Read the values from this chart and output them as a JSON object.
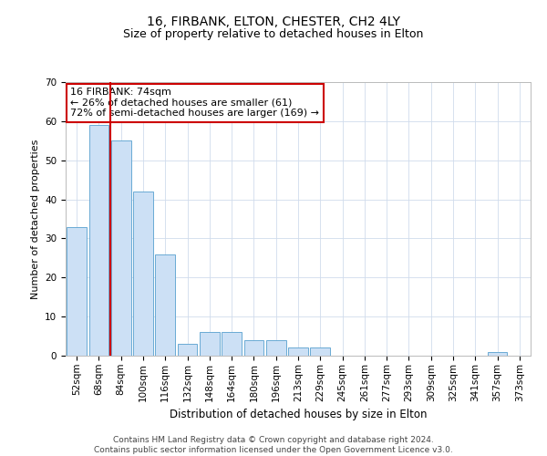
{
  "title": "16, FIRBANK, ELTON, CHESTER, CH2 4LY",
  "subtitle": "Size of property relative to detached houses in Elton",
  "xlabel": "Distribution of detached houses by size in Elton",
  "ylabel": "Number of detached properties",
  "categories": [
    "52sqm",
    "68sqm",
    "84sqm",
    "100sqm",
    "116sqm",
    "132sqm",
    "148sqm",
    "164sqm",
    "180sqm",
    "196sqm",
    "213sqm",
    "229sqm",
    "245sqm",
    "261sqm",
    "277sqm",
    "293sqm",
    "309sqm",
    "325sqm",
    "341sqm",
    "357sqm",
    "373sqm"
  ],
  "values": [
    33,
    59,
    55,
    42,
    26,
    3,
    6,
    6,
    4,
    4,
    2,
    2,
    0,
    0,
    0,
    0,
    0,
    0,
    0,
    1,
    0
  ],
  "bar_color": "#cce0f5",
  "bar_edge_color": "#6aaad4",
  "vline_x_index": 1.5,
  "vline_color": "#cc0000",
  "annotation_text": "16 FIRBANK: 74sqm\n← 26% of detached houses are smaller (61)\n72% of semi-detached houses are larger (169) →",
  "annotation_box_color": "white",
  "annotation_box_edge_color": "#cc0000",
  "ylim": [
    0,
    70
  ],
  "yticks": [
    0,
    10,
    20,
    30,
    40,
    50,
    60,
    70
  ],
  "footer_line1": "Contains HM Land Registry data © Crown copyright and database right 2024.",
  "footer_line2": "Contains public sector information licensed under the Open Government Licence v3.0.",
  "title_fontsize": 10,
  "subtitle_fontsize": 9,
  "tick_fontsize": 7.5,
  "ylabel_fontsize": 8,
  "xlabel_fontsize": 8.5,
  "annotation_fontsize": 8,
  "footer_fontsize": 6.5,
  "background_color": "#ffffff",
  "grid_color": "#d0dcec"
}
